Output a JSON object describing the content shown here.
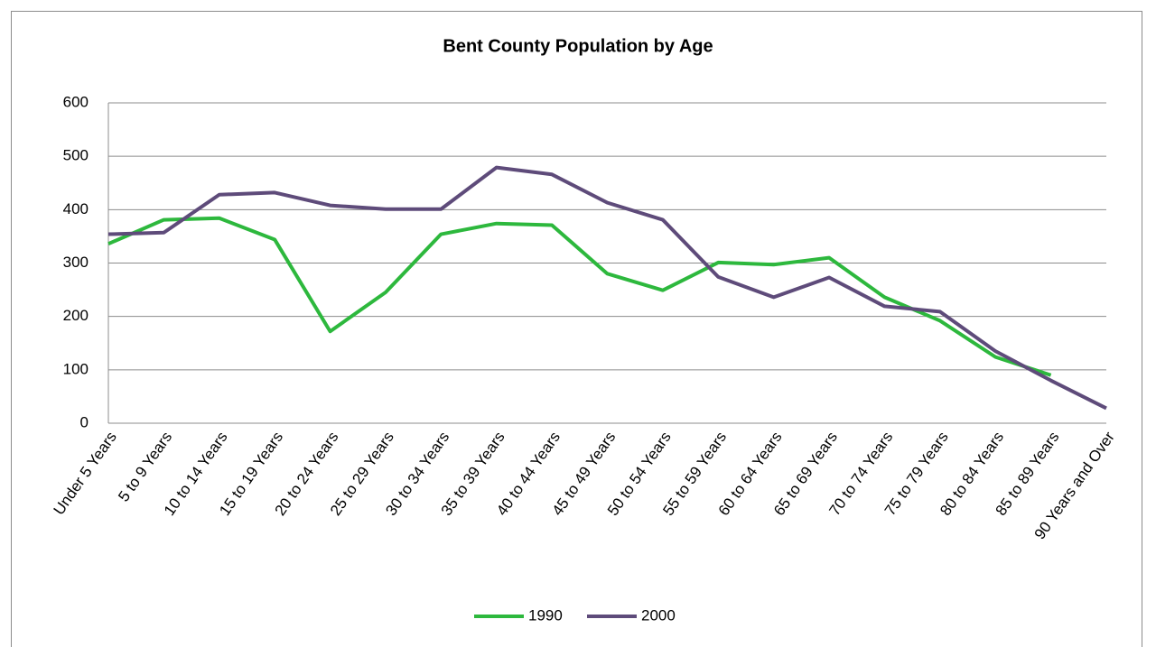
{
  "chart_data": {
    "type": "line",
    "title": "Bent County Population by Age",
    "categories": [
      "Under 5 Years",
      "5 to 9 Years",
      "10 to 14 Years",
      "15 to 19 Years",
      "20 to 24 Years",
      "25 to 29 Years",
      "30 to 34 Years",
      "35 to 39 Years",
      "40 to 44 Years",
      "45 to 49 Years",
      "50 to 54 Years",
      "55 to 59 Years",
      "60 to 64 Years",
      "65 to 69 Years",
      "70 to 74 Years",
      "75 to 79 Years",
      "80 to 84 Years",
      "85 to 89 Years",
      "90 Years and Over"
    ],
    "series": [
      {
        "name": "1990",
        "color": "#2db83d",
        "values": [
          336,
          381,
          384,
          344,
          172,
          245,
          354,
          374,
          371,
          280,
          249,
          301,
          297,
          310,
          236,
          192,
          124,
          90,
          null
        ]
      },
      {
        "name": "2000",
        "color": "#5e4b7a",
        "values": [
          354,
          357,
          428,
          432,
          408,
          401,
          401,
          479,
          466,
          413,
          381,
          274,
          236,
          273,
          219,
          209,
          135,
          80,
          28
        ]
      }
    ],
    "ylim": [
      0,
      600
    ],
    "yticks": [
      0,
      100,
      200,
      300,
      400,
      500,
      600
    ],
    "grid": true,
    "legend": "bottom"
  }
}
